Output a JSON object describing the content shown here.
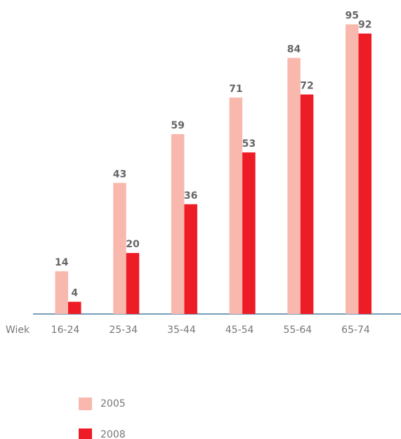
{
  "chart_data": {
    "type": "bar",
    "x_label": "Wiek",
    "categories": [
      "16-24",
      "25-34",
      "35-44",
      "45-54",
      "55-64",
      "65-74"
    ],
    "series": [
      {
        "name": "2005",
        "color": "#f9b8ad",
        "values": [
          14,
          43,
          59,
          71,
          84,
          95
        ]
      },
      {
        "name": "2008",
        "color": "#ee1c25",
        "values": [
          4,
          20,
          36,
          53,
          72,
          92
        ]
      }
    ],
    "ylim": [
      0,
      100
    ]
  }
}
